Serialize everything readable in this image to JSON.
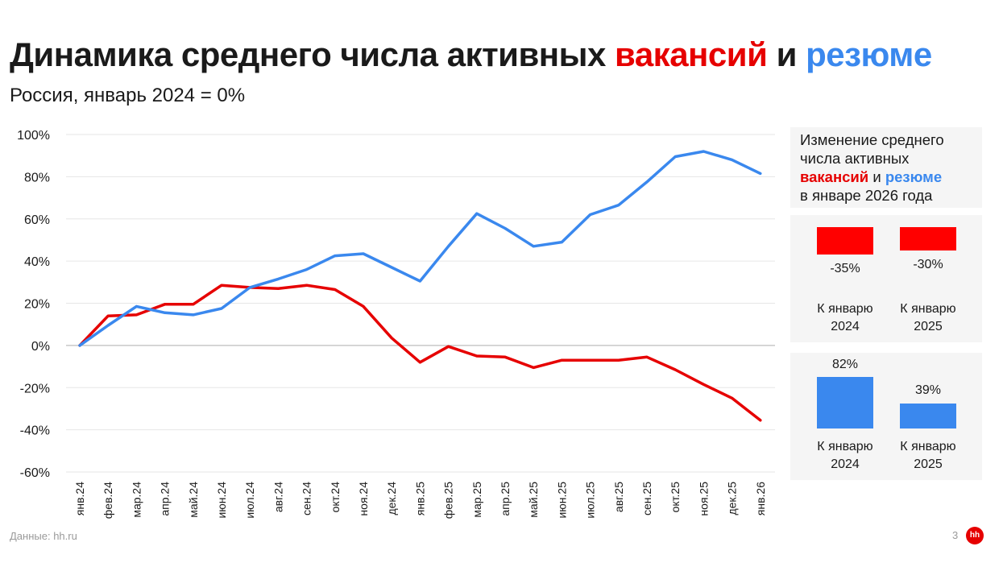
{
  "title": {
    "part1": "Динамика среднего числа активных ",
    "part2": "вакансий",
    "part3": " и ",
    "part4": "резюме"
  },
  "subtitle": "Россия, январь 2024 = 0%",
  "colors": {
    "vacancies": "#e60000",
    "resumes": "#3a88ee",
    "grid": "#e6e6e6",
    "zero_line": "#bdbdbd",
    "panel_bg": "#f5f5f5"
  },
  "side_panel": {
    "heading_line1": "Изменение среднего",
    "heading_line2": "числа активных",
    "heading_vacancies": "вакансий",
    "heading_and": " и ",
    "heading_resumes": "резюме",
    "heading_line4": "в январе 2026 года",
    "vacancies": [
      {
        "value": -35,
        "label": "-35%",
        "caption_line1": "К январю",
        "caption_line2": "2024"
      },
      {
        "value": -30,
        "label": "-30%",
        "caption_line1": "К январю",
        "caption_line2": "2025"
      }
    ],
    "resumes": [
      {
        "value": 82,
        "label": "82%",
        "caption_line1": "К январю",
        "caption_line2": "2024"
      },
      {
        "value": 39,
        "label": "39%",
        "caption_line1": "К январю",
        "caption_line2": "2025"
      }
    ]
  },
  "footer": {
    "source": "Данные: hh.ru",
    "page_number": "3",
    "logo_text": "hh"
  },
  "chart_data": {
    "type": "line",
    "categories": [
      "янв.24",
      "фев.24",
      "мар.24",
      "апр.24",
      "май.24",
      "июн.24",
      "июл.24",
      "авг.24",
      "сен.24",
      "окт.24",
      "ноя.24",
      "дек.24",
      "янв.25",
      "фев.25",
      "мар.25",
      "апр.25",
      "май.25",
      "июн.25",
      "июл.25",
      "авг.25",
      "сен.25",
      "окт.25",
      "ноя.25",
      "дек.25",
      "янв.26"
    ],
    "series": [
      {
        "key": "vacancies",
        "values": [
          0,
          14,
          14.5,
          19.5,
          19.5,
          28.5,
          27.5,
          27,
          28.5,
          26.5,
          18.5,
          3.5,
          -8,
          -0.5,
          -5,
          -5.5,
          -10.5,
          -7,
          -7,
          -7,
          -5.5,
          -11.5,
          -18.5,
          -25,
          -35.5
        ]
      },
      {
        "key": "resumes",
        "values": [
          0,
          9.5,
          18.5,
          15.5,
          14.5,
          17.5,
          27.5,
          31.5,
          36,
          42.5,
          43.5,
          37,
          30.5,
          47,
          62.5,
          55.5,
          47,
          49,
          62,
          66.5,
          77.5,
          89.5,
          92,
          88,
          81.5
        ]
      }
    ],
    "y_ticks": [
      "100%",
      "80%",
      "60%",
      "40%",
      "20%",
      "0%",
      "-20%",
      "-40%",
      "-60%"
    ],
    "ylim": [
      -60,
      100
    ],
    "grid": true,
    "legend": "none"
  }
}
